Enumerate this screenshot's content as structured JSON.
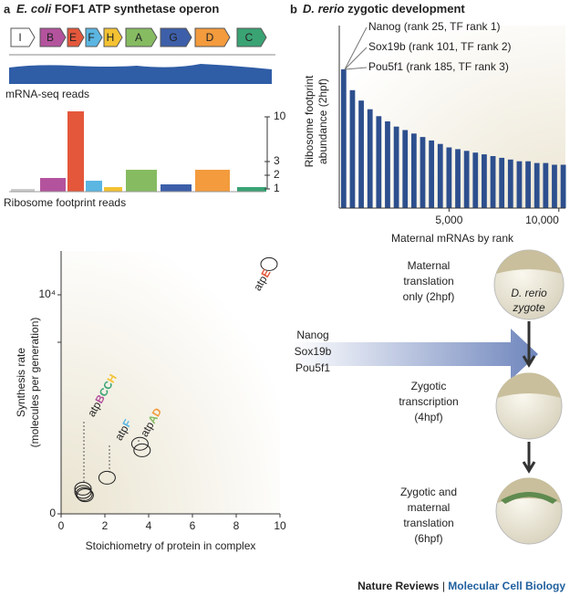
{
  "panel_a": {
    "label": "a",
    "title_italic": "E. coli",
    "title": "FOF1 ATP synthetase operon",
    "genes": [
      "I",
      "B",
      "E",
      "F",
      "H",
      "A",
      "G",
      "D",
      "C"
    ],
    "mrna_label": "mRNA-seq reads",
    "footprint_label": "Ribosome footprint reads",
    "footprint_axis_labels": [
      "10",
      "3",
      "2",
      "1"
    ]
  },
  "chart_data": [
    {
      "type": "bar",
      "label": "b",
      "title_italic": "D. rerio",
      "title": "zygotic development",
      "x": [
        200,
        600,
        1000,
        1400,
        1800,
        2200,
        2600,
        3000,
        3400,
        3800,
        4200,
        4600,
        5000,
        5400,
        5800,
        6200,
        6600,
        7000,
        7400,
        7800,
        8200,
        8600,
        9000,
        9400,
        9800,
        10200
      ],
      "values": [
        80,
        68,
        62,
        57,
        53,
        50,
        47,
        45,
        43,
        41,
        39,
        37,
        35,
        34,
        33,
        32,
        31,
        30,
        29,
        28,
        27,
        27,
        26,
        26,
        25,
        25
      ],
      "color": "#2d4f8e",
      "xlim": [
        0,
        10300
      ],
      "ylim": [
        0,
        100
      ],
      "xticks": [
        {
          "value": 5000,
          "label": "5,000"
        },
        {
          "value": 10000,
          "label": "10,000"
        }
      ],
      "xlabel": "Maternal mRNAs by rank",
      "ylabel": [
        "Ribosome footprint",
        "abundance (2hpf)"
      ],
      "annotations": [
        "Nanog (rank 25, TF rank 1)",
        "Sox19b (rank 101, TF rank 2)",
        "Pou5f1 (rank 185, TF rank 3)"
      ]
    },
    {
      "type": "scatter",
      "x": [
        1,
        1,
        1.05,
        1.1,
        2.1,
        3.6,
        3.7,
        9.5
      ],
      "values": [
        1150,
        1000,
        900,
        850,
        1650,
        3200,
        2900,
        11400
      ],
      "xlim": [
        0,
        10
      ],
      "ylim": [
        0,
        12000
      ],
      "xticks": [
        0,
        2,
        4,
        6,
        8,
        10
      ],
      "yticks": [
        0,
        {
          "value": 10000,
          "label": "10⁴"
        }
      ],
      "xlabel": "Stoichiometry of protein in complex",
      "ylabel": [
        "Synthesis rate",
        "(molecules per generation)"
      ],
      "point_labels": [
        {
          "prefix": "atp",
          "letters": [
            "B",
            "C",
            "C",
            "H"
          ]
        },
        {
          "prefix": "atp",
          "letters": [
            "F"
          ]
        },
        {
          "prefix": "atp",
          "letters": [
            "A",
            "D"
          ]
        },
        {
          "prefix": "atp",
          "letters": [
            "E"
          ]
        }
      ]
    }
  ],
  "panel_d": {
    "inputs": [
      "Nanog",
      "Sox19b",
      "Pou5f1"
    ],
    "zygote_label": [
      "D. rerio",
      "zygote"
    ],
    "stages": [
      {
        "lines": [
          "Maternal",
          "translation",
          "only (2hpf)"
        ]
      },
      {
        "lines": [
          "Zygotic",
          "transcription",
          "(4hpf)"
        ]
      },
      {
        "lines": [
          "Zygotic and",
          "maternal",
          "translation",
          "(6hpf)"
        ]
      }
    ]
  },
  "footer": {
    "journal": "Nature Reviews",
    "separator": "|",
    "section": "Molecular Cell Biology"
  }
}
